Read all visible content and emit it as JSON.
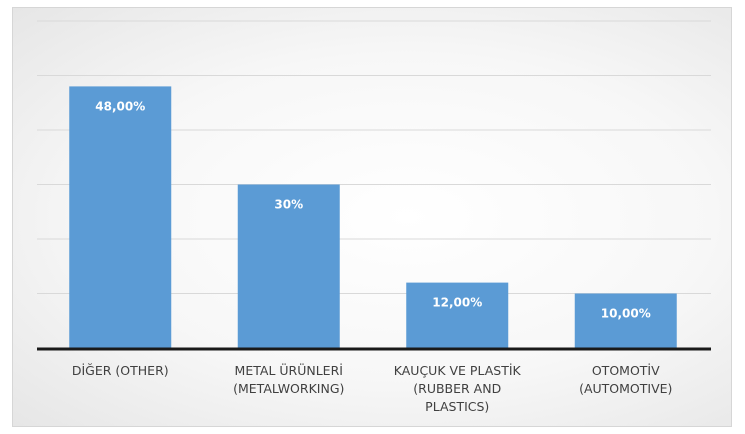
{
  "chart_data": {
    "type": "bar",
    "categories": [
      [
        "DİĞER (OTHER)"
      ],
      [
        "METAL ÜRÜNLERİ",
        "(METALWORKING)"
      ],
      [
        "KAUÇUK VE PLASTİK",
        "(RUBBER AND",
        "PLASTICS)"
      ],
      [
        "OTOMOTİV",
        "(AUTOMOTIVE)"
      ]
    ],
    "values": [
      48,
      30,
      12,
      10
    ],
    "data_labels": [
      "48,00%",
      "30%",
      "12,00%",
      "10,00%"
    ],
    "ylim": [
      0,
      60
    ],
    "grid": true,
    "bar_color": "#5b9bd5",
    "title": "",
    "xlabel": "",
    "ylabel": ""
  }
}
